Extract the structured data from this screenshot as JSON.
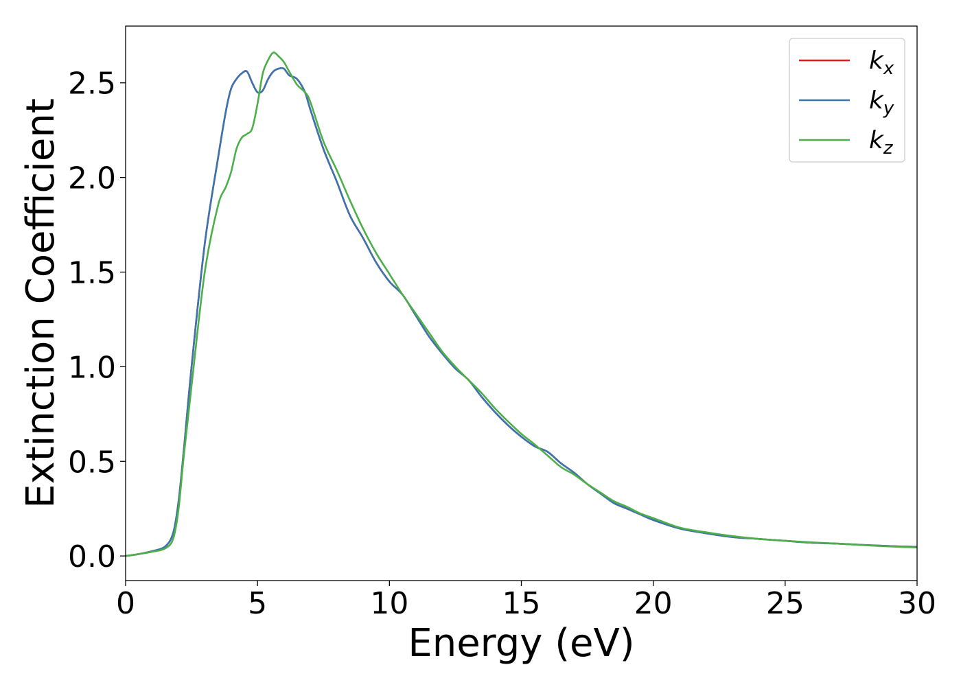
{
  "chart_data": {
    "type": "line",
    "title": "",
    "xlabel": "Energy (eV)",
    "ylabel": "Extinction Coefficient",
    "xlim": [
      0,
      30
    ],
    "ylim": [
      -0.13,
      2.8
    ],
    "xticks": [
      0,
      5,
      10,
      15,
      20,
      25,
      30
    ],
    "xtick_labels": [
      "0",
      "5",
      "10",
      "15",
      "20",
      "25",
      "30"
    ],
    "yticks": [
      0.0,
      0.5,
      1.0,
      1.5,
      2.0,
      2.5
    ],
    "ytick_labels": [
      "0.0",
      "0.5",
      "1.0",
      "1.5",
      "2.0",
      "2.5"
    ],
    "grid": false,
    "legend_position": "top-right",
    "series": [
      {
        "name": "k",
        "sub": "x",
        "color": "#e41a1c",
        "x": [
          0,
          0.5,
          1,
          1.5,
          1.8,
          2,
          2.2,
          2.5,
          3,
          3.5,
          3.8,
          4,
          4.2,
          4.4,
          4.6,
          4.8,
          5,
          5.2,
          5.4,
          5.6,
          5.8,
          6,
          6.2,
          6.5,
          6.8,
          7,
          7.5,
          8,
          8.5,
          9,
          9.5,
          10,
          10.5,
          11,
          11.5,
          12,
          12.5,
          13,
          13.5,
          14,
          14.5,
          15,
          15.5,
          16,
          16.5,
          17,
          17.5,
          18,
          18.5,
          19,
          19.5,
          20,
          21,
          22,
          23,
          24,
          25,
          26,
          27,
          28,
          29,
          30
        ],
        "y": [
          0,
          0.01,
          0.025,
          0.05,
          0.12,
          0.28,
          0.55,
          1.0,
          1.65,
          2.1,
          2.35,
          2.47,
          2.52,
          2.55,
          2.56,
          2.5,
          2.45,
          2.46,
          2.52,
          2.56,
          2.575,
          2.575,
          2.54,
          2.52,
          2.45,
          2.36,
          2.15,
          1.98,
          1.8,
          1.68,
          1.55,
          1.45,
          1.38,
          1.27,
          1.16,
          1.07,
          0.99,
          0.93,
          0.84,
          0.76,
          0.69,
          0.63,
          0.58,
          0.55,
          0.49,
          0.44,
          0.38,
          0.33,
          0.28,
          0.25,
          0.22,
          0.19,
          0.145,
          0.12,
          0.1,
          0.09,
          0.08,
          0.07,
          0.065,
          0.058,
          0.052,
          0.048
        ]
      },
      {
        "name": "k",
        "sub": "y",
        "color": "#3a75b0",
        "x": [
          0,
          0.5,
          1,
          1.5,
          1.8,
          2,
          2.2,
          2.5,
          3,
          3.5,
          3.8,
          4,
          4.2,
          4.4,
          4.6,
          4.8,
          5,
          5.2,
          5.4,
          5.6,
          5.8,
          6,
          6.2,
          6.5,
          6.8,
          7,
          7.5,
          8,
          8.5,
          9,
          9.5,
          10,
          10.5,
          11,
          11.5,
          12,
          12.5,
          13,
          13.5,
          14,
          14.5,
          15,
          15.5,
          16,
          16.5,
          17,
          17.5,
          18,
          18.5,
          19,
          19.5,
          20,
          21,
          22,
          23,
          24,
          25,
          26,
          27,
          28,
          29,
          30
        ],
        "y": [
          0,
          0.01,
          0.025,
          0.05,
          0.12,
          0.28,
          0.55,
          1.0,
          1.65,
          2.1,
          2.35,
          2.47,
          2.52,
          2.55,
          2.56,
          2.5,
          2.45,
          2.46,
          2.52,
          2.56,
          2.575,
          2.575,
          2.54,
          2.52,
          2.45,
          2.36,
          2.15,
          1.98,
          1.8,
          1.68,
          1.55,
          1.45,
          1.38,
          1.27,
          1.16,
          1.07,
          0.99,
          0.93,
          0.84,
          0.76,
          0.69,
          0.63,
          0.58,
          0.55,
          0.49,
          0.44,
          0.38,
          0.33,
          0.28,
          0.25,
          0.22,
          0.19,
          0.145,
          0.12,
          0.1,
          0.09,
          0.08,
          0.07,
          0.065,
          0.058,
          0.052,
          0.048
        ]
      },
      {
        "name": "k",
        "sub": "z",
        "color": "#4daf4a",
        "x": [
          0,
          0.5,
          1,
          1.5,
          1.8,
          2,
          2.2,
          2.5,
          3,
          3.5,
          3.8,
          4,
          4.2,
          4.4,
          4.6,
          4.8,
          5,
          5.2,
          5.4,
          5.6,
          5.8,
          6,
          6.2,
          6.5,
          6.8,
          7,
          7.5,
          8,
          8.5,
          9,
          9.5,
          10,
          10.5,
          11,
          11.5,
          12,
          12.5,
          13,
          13.5,
          14,
          14.5,
          15,
          15.5,
          16,
          16.5,
          17,
          17.5,
          18,
          18.5,
          19,
          19.5,
          20,
          21,
          22,
          23,
          24,
          25,
          26,
          27,
          28,
          29,
          30
        ],
        "y": [
          0,
          0.01,
          0.022,
          0.04,
          0.09,
          0.24,
          0.52,
          0.9,
          1.5,
          1.85,
          1.95,
          2.03,
          2.15,
          2.21,
          2.23,
          2.26,
          2.39,
          2.55,
          2.62,
          2.66,
          2.64,
          2.61,
          2.56,
          2.49,
          2.45,
          2.4,
          2.19,
          2.04,
          1.88,
          1.73,
          1.6,
          1.49,
          1.38,
          1.28,
          1.18,
          1.08,
          1.0,
          0.93,
          0.86,
          0.78,
          0.71,
          0.645,
          0.59,
          0.53,
          0.47,
          0.43,
          0.38,
          0.335,
          0.29,
          0.26,
          0.225,
          0.2,
          0.15,
          0.125,
          0.105,
          0.09,
          0.08,
          0.072,
          0.065,
          0.057,
          0.05,
          0.045
        ]
      }
    ]
  }
}
